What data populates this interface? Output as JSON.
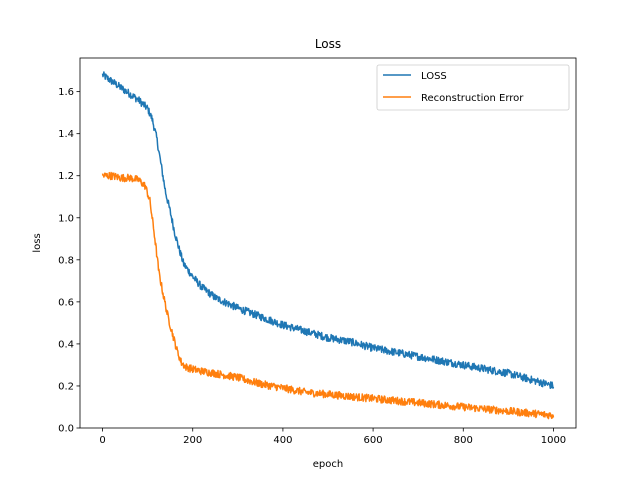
{
  "chart_data": {
    "type": "line",
    "title": "Loss",
    "xlabel": "epoch",
    "ylabel": "loss",
    "xlim": [
      -50,
      1050
    ],
    "ylim": [
      0.0,
      1.76
    ],
    "xticks": [
      0,
      200,
      400,
      600,
      800,
      1000
    ],
    "yticks": [
      0.0,
      0.2,
      0.4,
      0.6,
      0.8,
      1.0,
      1.2,
      1.4,
      1.6
    ],
    "ytick_labels": [
      "0.0",
      "0.2",
      "0.4",
      "0.6",
      "0.8",
      "1.0",
      "1.2",
      "1.4",
      "1.6"
    ],
    "grid": false,
    "legend_position": "top-right",
    "noise": 0.018,
    "series": [
      {
        "name": "LOSS",
        "color": "#1f77b4",
        "x": [
          0,
          20,
          40,
          60,
          80,
          100,
          110,
          120,
          130,
          140,
          150,
          160,
          170,
          180,
          190,
          200,
          220,
          250,
          300,
          350,
          400,
          450,
          500,
          550,
          600,
          650,
          700,
          750,
          800,
          850,
          900,
          950,
          1000
        ],
        "y": [
          1.68,
          1.65,
          1.62,
          1.59,
          1.56,
          1.52,
          1.47,
          1.38,
          1.25,
          1.12,
          1.03,
          0.93,
          0.85,
          0.78,
          0.75,
          0.72,
          0.67,
          0.62,
          0.57,
          0.53,
          0.49,
          0.46,
          0.43,
          0.41,
          0.38,
          0.36,
          0.34,
          0.32,
          0.3,
          0.28,
          0.26,
          0.23,
          0.2
        ]
      },
      {
        "name": "Reconstruction Error",
        "color": "#ff7f0e",
        "x": [
          0,
          20,
          40,
          60,
          80,
          95,
          105,
          115,
          125,
          135,
          145,
          155,
          165,
          175,
          185,
          200,
          220,
          250,
          300,
          350,
          400,
          450,
          500,
          550,
          600,
          650,
          700,
          750,
          800,
          850,
          900,
          950,
          1000
        ],
        "y": [
          1.2,
          1.2,
          1.19,
          1.19,
          1.18,
          1.15,
          1.08,
          0.92,
          0.74,
          0.63,
          0.53,
          0.45,
          0.37,
          0.31,
          0.29,
          0.28,
          0.27,
          0.26,
          0.24,
          0.21,
          0.19,
          0.17,
          0.16,
          0.15,
          0.14,
          0.13,
          0.12,
          0.11,
          0.1,
          0.09,
          0.08,
          0.07,
          0.06
        ]
      }
    ]
  }
}
